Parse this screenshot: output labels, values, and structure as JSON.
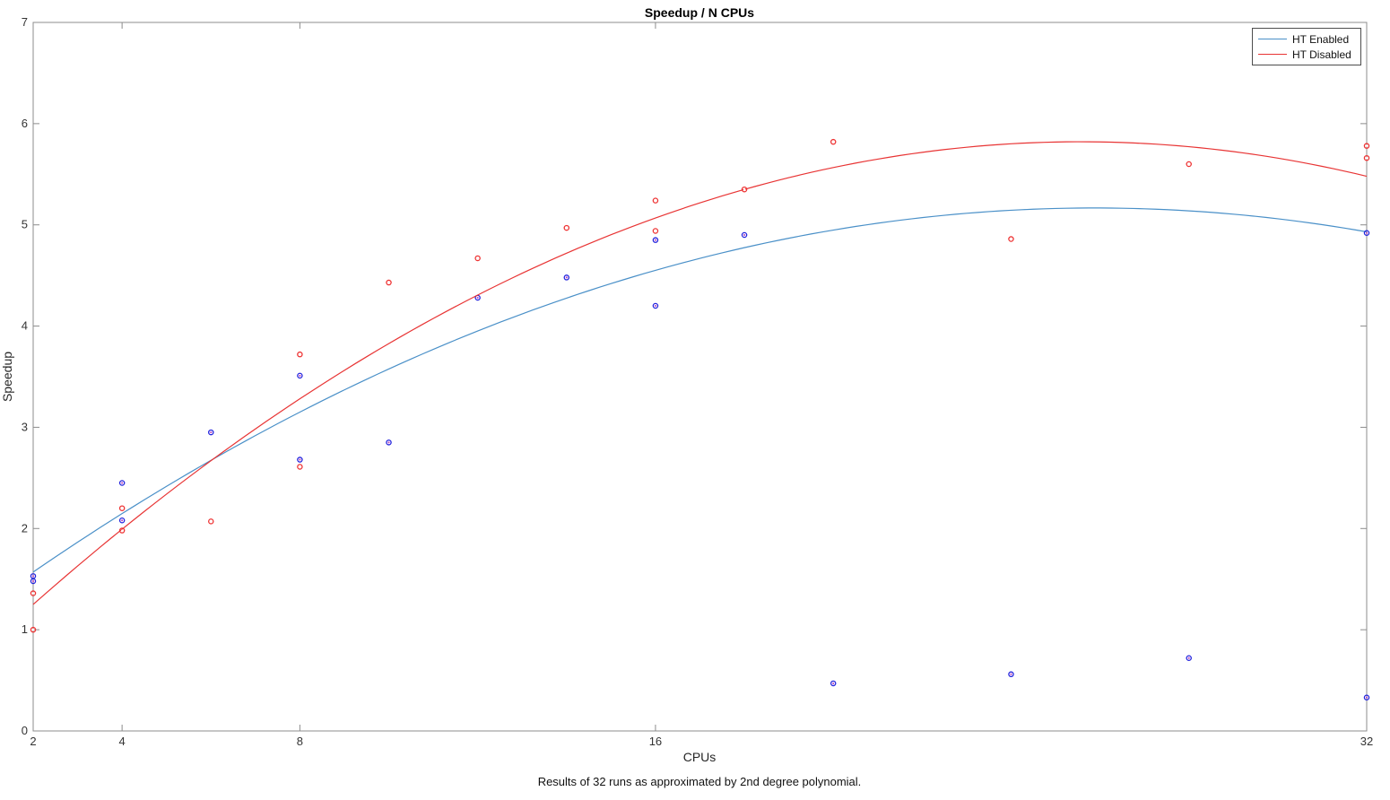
{
  "title": "Speedup / N CPUs",
  "caption": "Results of 32 runs as approximated by 2nd degree polynomial.",
  "chart_data": {
    "type": "scatter",
    "title": "Speedup / N CPUs",
    "xlabel": "CPUs",
    "ylabel": "Speedup",
    "xlim": [
      2,
      32
    ],
    "ylim": [
      0,
      7
    ],
    "x_scale": "linear",
    "x_ticks": [
      2,
      4,
      8,
      16,
      32
    ],
    "y_ticks": [
      0,
      1,
      2,
      3,
      4,
      5,
      6,
      7
    ],
    "grid": false,
    "legend_position": "top-right",
    "axis_color": "#8c8c8c",
    "tick_label_color": "#333333",
    "series": [
      {
        "name": "HT Enabled",
        "line_color": "#4a90c8",
        "marker_color": "#2323dd",
        "marker_center_color": "#bb3fbb",
        "points": [
          [
            2,
            1.53
          ],
          [
            2,
            1.48
          ],
          [
            4,
            2.45
          ],
          [
            4,
            2.08
          ],
          [
            6,
            2.95
          ],
          [
            8,
            3.51
          ],
          [
            8,
            2.68
          ],
          [
            10,
            2.85
          ],
          [
            12,
            4.28
          ],
          [
            14,
            4.48
          ],
          [
            16,
            4.85
          ],
          [
            16,
            4.2
          ],
          [
            18,
            4.9
          ],
          [
            20,
            0.47
          ],
          [
            24,
            0.56
          ],
          [
            28,
            0.72
          ],
          [
            32,
            4.92
          ],
          [
            32,
            0.33
          ]
        ],
        "fit_type": "2nd degree polynomial",
        "fit_poly_coeffs_abc": [
          -0.006305,
          0.3264,
          0.9424
        ],
        "fit_peak": {
          "x": 25.9,
          "y": 5.17
        },
        "fit_endpoints": {
          "x2": 1.57,
          "x32": 4.93
        }
      },
      {
        "name": "HT Disabled",
        "line_color": "#e83434",
        "marker_color": "#ee3333",
        "marker_center_color": "#ffffff",
        "points": [
          [
            2,
            1.36
          ],
          [
            2,
            1.0
          ],
          [
            4,
            2.2
          ],
          [
            4,
            1.98
          ],
          [
            6,
            2.07
          ],
          [
            8,
            3.72
          ],
          [
            8,
            2.61
          ],
          [
            10,
            4.43
          ],
          [
            12,
            4.67
          ],
          [
            14,
            4.97
          ],
          [
            16,
            5.24
          ],
          [
            16,
            4.94
          ],
          [
            18,
            5.35
          ],
          [
            20,
            5.82
          ],
          [
            24,
            4.86
          ],
          [
            28,
            5.6
          ],
          [
            32,
            5.78
          ],
          [
            32,
            5.66
          ]
        ],
        "fit_type": "2nd degree polynomial",
        "fit_poly_coeffs_abc": [
          -0.008232,
          0.42089,
          0.44115
        ],
        "fit_peak": {
          "x": 25.6,
          "y": 5.82
        },
        "fit_endpoints": {
          "x2": 1.25,
          "x32": 5.48
        }
      }
    ]
  }
}
